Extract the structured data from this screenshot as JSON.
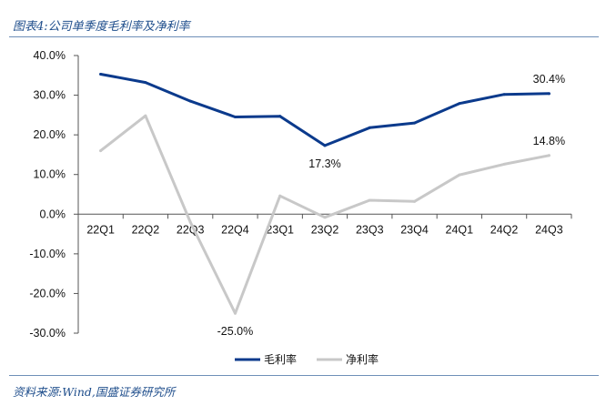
{
  "header": {
    "title": "图表4:公司单季度毛利率及净利率"
  },
  "footer": {
    "source": "资料来源:Wind,国盛证券研究所"
  },
  "chart_data": {
    "type": "line",
    "title": "",
    "xlabel": "",
    "ylabel": "",
    "ylim": [
      -30,
      40
    ],
    "yticks": [
      -30,
      -20,
      -10,
      0,
      10,
      20,
      30,
      40
    ],
    "ytick_labels": [
      "-30.0%",
      "-20.0%",
      "-10.0%",
      "0.0%",
      "10.0%",
      "20.0%",
      "30.0%",
      "40.0%"
    ],
    "categories": [
      "22Q1",
      "22Q2",
      "22Q3",
      "22Q4",
      "23Q1",
      "23Q2",
      "23Q3",
      "23Q4",
      "24Q1",
      "24Q2",
      "24Q3"
    ],
    "legend_position": "bottom-center",
    "grid": false,
    "series": [
      {
        "name": "毛利率",
        "color": "#0b3a8c",
        "values": [
          35.3,
          33.2,
          28.5,
          24.5,
          24.7,
          17.3,
          21.8,
          23.0,
          27.9,
          30.2,
          30.4
        ]
      },
      {
        "name": "净利率",
        "color": "#c8c8c8",
        "values": [
          16.0,
          24.8,
          -2.0,
          -25.0,
          4.6,
          -0.8,
          3.5,
          3.2,
          9.9,
          12.6,
          14.8
        ]
      }
    ],
    "annotations": [
      {
        "series": 0,
        "index": 10,
        "text": "30.4%",
        "pos": "above"
      },
      {
        "series": 0,
        "index": 5,
        "text": "17.3%",
        "pos": "below"
      },
      {
        "series": 1,
        "index": 10,
        "text": "14.8%",
        "pos": "above"
      },
      {
        "series": 1,
        "index": 3,
        "text": "-25.0%",
        "pos": "below"
      }
    ]
  }
}
